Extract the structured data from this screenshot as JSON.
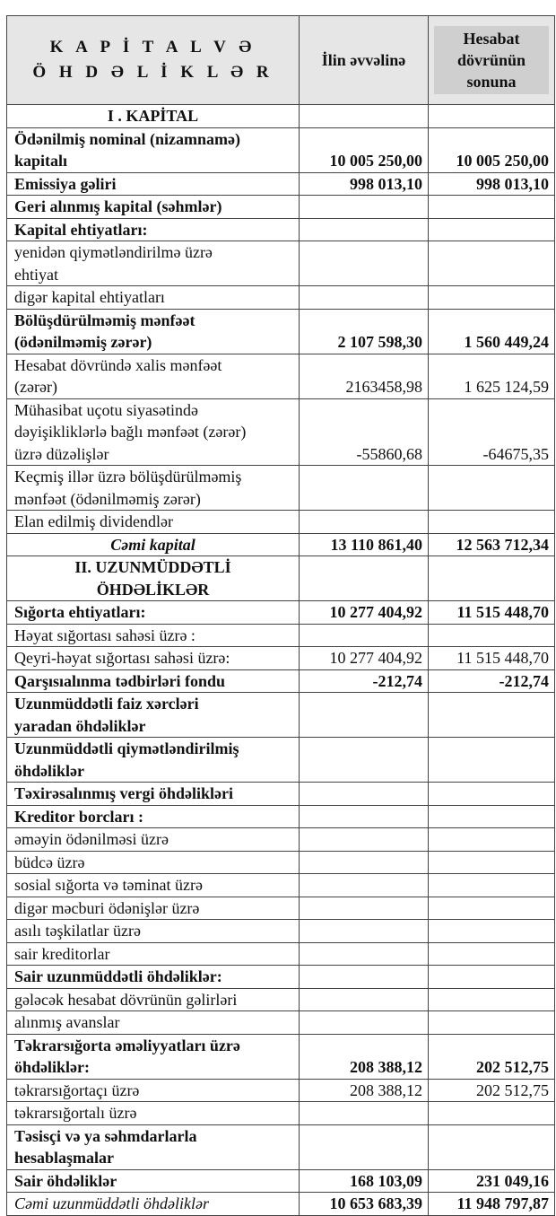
{
  "header": {
    "col1": "K A P İ T A L  V Ə\nÖ H D Ə L İ K L Ə R",
    "col2": "İlin əvvəlinə",
    "col3": "Hesabat\ndövrünün\nsonuna"
  },
  "rows": [
    {
      "label": "I . KAPİTAL",
      "style": "bold center",
      "v1": "",
      "v2": ""
    },
    {
      "label": "Ödənilmiş nominal (nizamnamə)\nkapitalı",
      "style": "bold",
      "v1": "10 005 250,00",
      "v2": "10 005 250,00"
    },
    {
      "label": "Emissiya gəliri",
      "style": "bold",
      "v1": "998 013,10",
      "v2": "998 013,10"
    },
    {
      "label": "Geri alınmış kapital (səhmlər)",
      "style": "bold",
      "v1": "",
      "v2": ""
    },
    {
      "label": "Kapital ehtiyatları:",
      "style": "bold",
      "v1": "",
      "v2": ""
    },
    {
      "label": "yenidən qiymətləndirilmə üzrə\nehtiyat",
      "style": "",
      "v1": "",
      "v2": ""
    },
    {
      "label": "digər kapital ehtiyatları",
      "style": "",
      "v1": "",
      "v2": ""
    },
    {
      "label": "Bölüşdürülməmiş mənfəət\n(ödənilməmiş zərər)",
      "style": "bold",
      "v1": "2 107 598,30",
      "v2": "1 560 449,24"
    },
    {
      "label": "Hesabat dövründə xalis mənfəət\n(zərər)",
      "style": "",
      "v1": "2163458,98",
      "v2": "1 625 124,59"
    },
    {
      "label": "Mühasibat uçotu siyasətində\ndəyişikliklərlə bağlı mənfəət (zərər)\nüzrə düzəlişlər",
      "style": "",
      "v1": "-55860,68",
      "v2": "-64675,35"
    },
    {
      "label": "Keçmiş illər üzrə bölüşdürülməmiş\nmənfəət (ödənilməmiş zərər)",
      "style": "",
      "v1": "",
      "v2": ""
    },
    {
      "label": "Elan edilmiş dividendlər",
      "style": "",
      "v1": "",
      "v2": ""
    },
    {
      "label": "Cəmi kapital",
      "style": "bold center italic",
      "v1": "13 110 861,40",
      "v2": "12 563 712,34"
    },
    {
      "label": "II. UZUNMÜDDƏTLİ\nÖHDƏLİKLƏR",
      "style": "bold center",
      "v1": "",
      "v2": ""
    },
    {
      "label": "Sığorta ehtiyatları:",
      "style": "bold",
      "v1": "10 277 404,92",
      "v2": "11 515 448,70"
    },
    {
      "label": "Həyat sığortası sahəsi üzrə :",
      "style": "",
      "v1": "",
      "v2": ""
    },
    {
      "label": "Qeyri-həyat sığortası sahəsi üzrə:",
      "style": "",
      "v1": "10 277 404,92",
      "v2": "11 515 448,70"
    },
    {
      "label": "Qarşısıalınma tədbirləri fondu",
      "style": "bold",
      "v1": "-212,74",
      "v2": "-212,74"
    },
    {
      "label": "Uzunmüddətli faiz xərcləri\nyaradan öhdəliklər",
      "style": "bold",
      "v1": "",
      "v2": ""
    },
    {
      "label": "Uzunmüddətli qiymətləndirilmiş\nöhdəliklər",
      "style": "bold",
      "v1": "",
      "v2": ""
    },
    {
      "label": "Təxirəsalınmış vergi öhdəlikləri",
      "style": "bold",
      "v1": "",
      "v2": ""
    },
    {
      "label": "Kreditor borcları :",
      "style": "bold",
      "v1": "",
      "v2": ""
    },
    {
      "label": "əməyin ödənilməsi üzrə",
      "style": "",
      "v1": "",
      "v2": ""
    },
    {
      "label": "büdcə üzrə",
      "style": "",
      "v1": "",
      "v2": ""
    },
    {
      "label": "sosial sığorta və təminat üzrə",
      "style": "",
      "v1": "",
      "v2": ""
    },
    {
      "label": "digər məcburi ödənişlər üzrə",
      "style": "",
      "v1": "",
      "v2": ""
    },
    {
      "label": "asılı təşkilatlar üzrə",
      "style": "",
      "v1": "",
      "v2": ""
    },
    {
      "label": "sair kreditorlar",
      "style": "",
      "v1": "",
      "v2": ""
    },
    {
      "label": "Sair uzunmüddətli öhdəliklər:",
      "style": "bold",
      "v1": "",
      "v2": ""
    },
    {
      "label": "gələcək hesabat dövrünün gəlirləri",
      "style": "",
      "v1": "",
      "v2": ""
    },
    {
      "label": "alınmış avanslar",
      "style": "",
      "v1": "",
      "v2": ""
    },
    {
      "label": "Təkrarsığorta əməliyyatları üzrə\nöhdəliklər:",
      "style": "bold",
      "v1": "208 388,12",
      "v2": "202 512,75"
    },
    {
      "label": "təkrarsığortaçı üzrə",
      "style": "",
      "v1": "208 388,12",
      "v2": "202 512,75"
    },
    {
      "label": "təkrarsığortalı üzrə",
      "style": "",
      "v1": "",
      "v2": ""
    },
    {
      "label": "Təsisçi və ya səhmdarlarla\nhesablaşmalar",
      "style": "bold",
      "v1": "",
      "v2": ""
    },
    {
      "label": "Sair öhdəliklər",
      "style": "bold",
      "v1": "168 103,09",
      "v2": "231 049,16"
    },
    {
      "label": "Cəmi uzunmüddətli öhdəliklər",
      "style": "italic",
      "v1": "10 653 683,39",
      "v2": "11 948 797,87",
      "values_bold": true
    }
  ]
}
